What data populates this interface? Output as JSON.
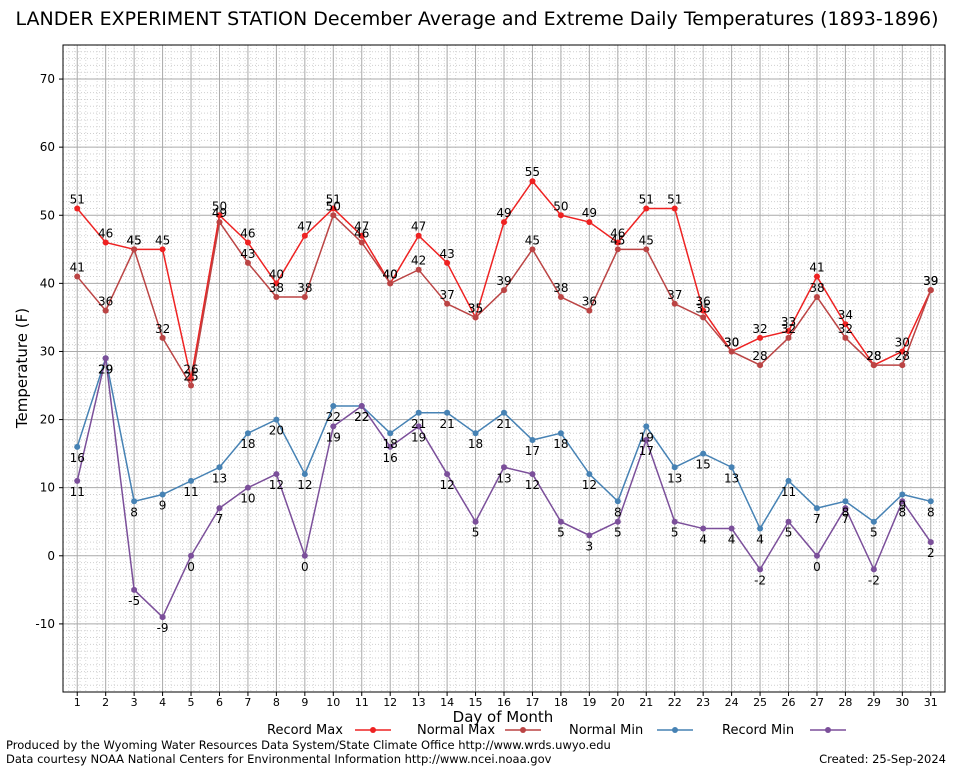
{
  "title": "LANDER EXPERIMENT STATION December Average and Extreme Daily Temperatures (1893-1896)",
  "footer": {
    "produced_by": "Produced by the Wyoming Water Resources Data System/State Climate Office http://www.wrds.uwyo.edu",
    "data_courtesy": "Data courtesy NOAA National Centers for Environmental Information http://www.ncei.noaa.gov",
    "created": "Created:  25-Sep-2024"
  },
  "chart_data": {
    "type": "line",
    "title": "LANDER EXPERIMENT STATION December Average and Extreme Daily Temperatures (1893-1896)",
    "xlabel": "Day of Month",
    "ylabel": "Temperature (F)",
    "x": [
      1,
      2,
      3,
      4,
      5,
      6,
      7,
      8,
      9,
      10,
      11,
      12,
      13,
      14,
      15,
      16,
      17,
      18,
      19,
      20,
      21,
      22,
      23,
      24,
      25,
      26,
      27,
      28,
      29,
      30,
      31
    ],
    "xlim": [
      0.5,
      31.5
    ],
    "ylim": [
      -20,
      75
    ],
    "yticks": [
      -10,
      0,
      10,
      20,
      30,
      40,
      50,
      60,
      70
    ],
    "grid": true,
    "legend_position": "bottom",
    "series": [
      {
        "name": "Record Max",
        "color": "#ee2222",
        "values": [
          51,
          46,
          45,
          45,
          26,
          50,
          46,
          40,
          47,
          51,
          47,
          40,
          47,
          43,
          35,
          49,
          55,
          50,
          49,
          46,
          51,
          51,
          36,
          30,
          32,
          33,
          41,
          34,
          28,
          30,
          39
        ]
      },
      {
        "name": "Normal Max",
        "color": "#bb4444",
        "values": [
          41,
          36,
          45,
          32,
          25,
          49,
          43,
          38,
          38,
          50,
          46,
          40,
          42,
          37,
          35,
          39,
          45,
          38,
          36,
          45,
          45,
          37,
          35,
          30,
          28,
          32,
          38,
          32,
          28,
          28,
          39
        ]
      },
      {
        "name": "Normal Min",
        "color": "#4682b4",
        "values": [
          16,
          29,
          8,
          9,
          11,
          13,
          18,
          20,
          12,
          22,
          22,
          18,
          21,
          21,
          18,
          21,
          17,
          18,
          12,
          8,
          19,
          13,
          15,
          13,
          4,
          11,
          7,
          8,
          5,
          9,
          8
        ]
      },
      {
        "name": "Record Min",
        "color": "#7b4f9a",
        "values": [
          11,
          29,
          -5,
          -9,
          0,
          7,
          10,
          12,
          0,
          19,
          22,
          16,
          19,
          12,
          5,
          13,
          12,
          5,
          3,
          5,
          17,
          5,
          4,
          4,
          -2,
          5,
          0,
          7,
          -2,
          8,
          2
        ]
      }
    ]
  }
}
